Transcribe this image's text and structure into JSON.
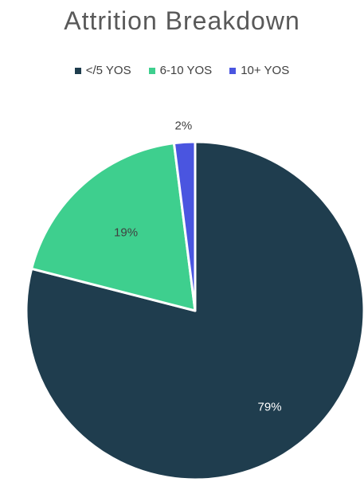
{
  "chart_data": {
    "type": "pie",
    "title": "Attrition Breakdown",
    "legend_position": "top",
    "slices": [
      {
        "label": "</5 YOS",
        "value": 79,
        "display": "79%",
        "color": "#1f3d4e",
        "label_color": "#ffffff"
      },
      {
        "label": "6-10 YOS",
        "value": 19,
        "display": "19%",
        "color": "#3ecf8e",
        "label_color": "#404040"
      },
      {
        "label": "10+ YOS",
        "value": 2,
        "display": "2%",
        "color": "#4a55e0",
        "label_color": "#404040"
      }
    ]
  }
}
